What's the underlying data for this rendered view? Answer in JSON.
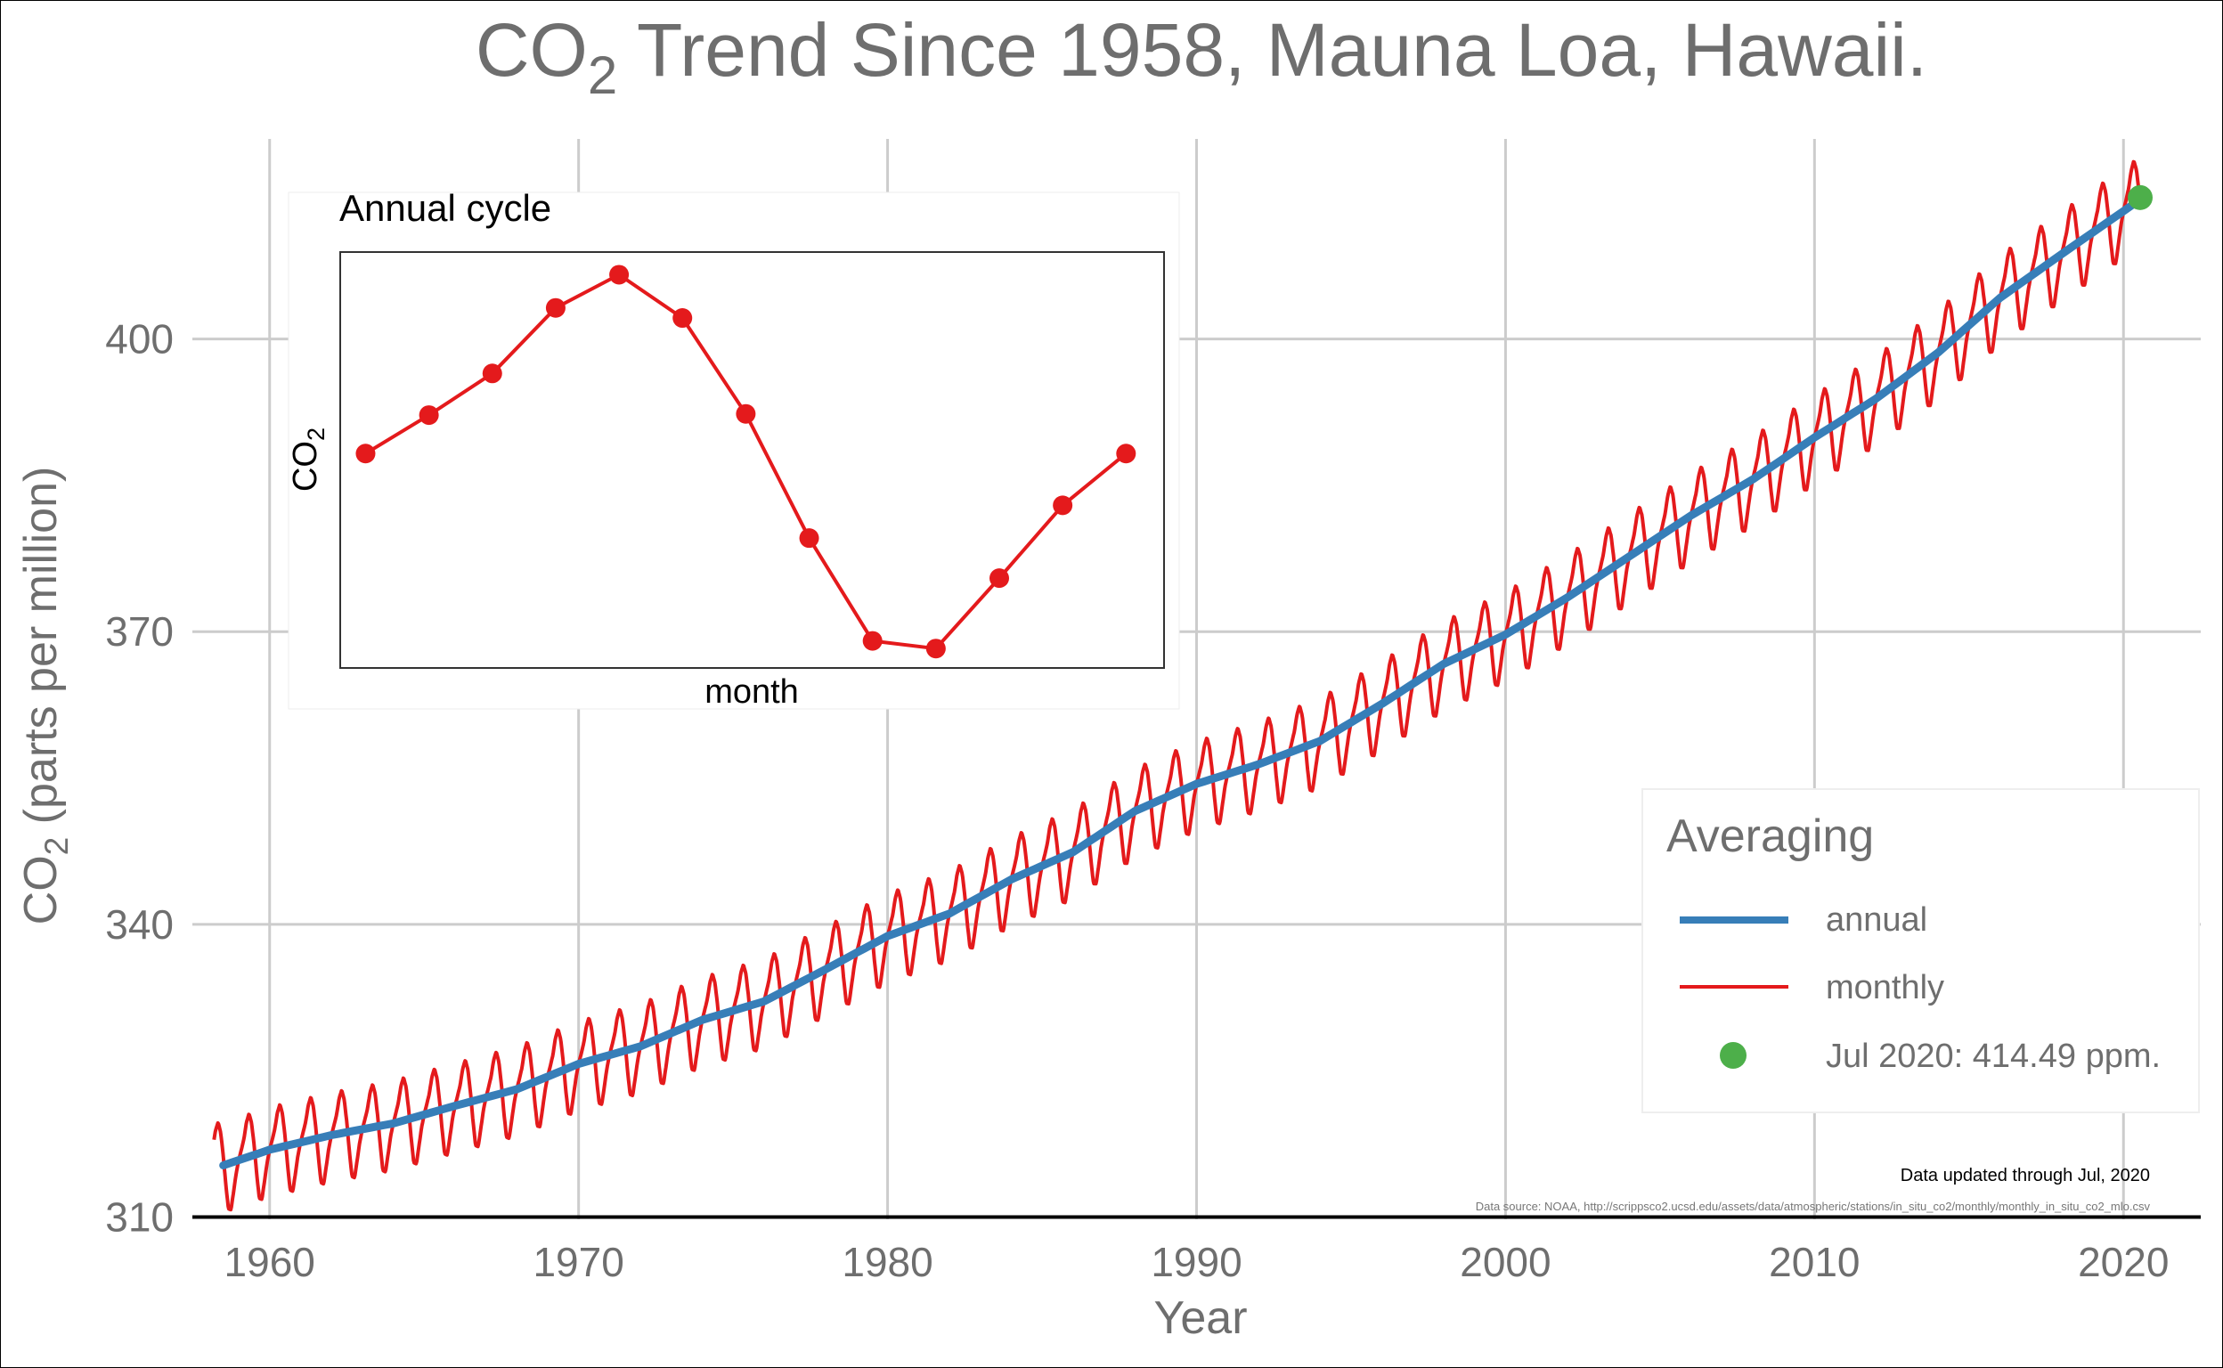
{
  "chart_data": [
    {
      "type": "line",
      "title_main": "CO",
      "title_sub": "2",
      "title_rest": " Trend Since 1958, Mauna Loa, Hawaii.",
      "xlabel": "Year",
      "ylabel_main": "CO",
      "ylabel_sub": "2",
      "ylabel_rest": " (parts per million)",
      "xlim": [
        1957.5,
        2022.5
      ],
      "ylim": [
        309.5,
        420.5
      ],
      "x_ticks": [
        1960,
        1970,
        1980,
        1990,
        2000,
        2010,
        2020
      ],
      "x_tick_labels": [
        "1960",
        "1970",
        "1980",
        "1990",
        "2000",
        "2010",
        "2020"
      ],
      "y_ticks": [
        310,
        340,
        370,
        400
      ],
      "y_tick_labels": [
        "310",
        "340",
        "370",
        "400"
      ],
      "grid": true,
      "series": [
        {
          "name": "annual",
          "color": "#377EB8",
          "x": [
            1958.5,
            1960,
            1962,
            1964,
            1966,
            1968,
            1970,
            1972,
            1974,
            1976,
            1978,
            1980,
            1982,
            1984,
            1986,
            1988,
            1990,
            1992,
            1994,
            1996,
            1998,
            2000,
            2002,
            2004,
            2006,
            2008,
            2010,
            2012,
            2014,
            2016,
            2018,
            2020.5
          ],
          "values": [
            315.3,
            316.9,
            318.4,
            319.6,
            321.4,
            323.1,
            325.7,
            327.5,
            330.2,
            332.1,
            335.4,
            338.8,
            341.1,
            344.6,
            347.4,
            351.6,
            354.4,
            356.4,
            358.8,
            362.6,
            366.7,
            369.7,
            373.5,
            377.7,
            381.9,
            385.6,
            389.9,
            393.9,
            398.6,
            404.2,
            408.7,
            414.2
          ]
        },
        {
          "name": "monthly",
          "color": "#E41A1C",
          "x": [
            1958.5,
            1960,
            1962,
            1964,
            1966,
            1968,
            1970,
            1972,
            1974,
            1976,
            1978,
            1980,
            1982,
            1984,
            1986,
            1988,
            1990,
            1992,
            1994,
            1996,
            1998,
            2000,
            2002,
            2004,
            2006,
            2008,
            2010,
            2012,
            2014,
            2016,
            2018,
            2020.5
          ],
          "values": [
            315.3,
            316.9,
            318.4,
            319.6,
            321.4,
            323.1,
            325.7,
            327.5,
            330.2,
            332.1,
            335.4,
            338.8,
            341.1,
            344.6,
            347.4,
            351.6,
            354.4,
            356.4,
            358.8,
            362.6,
            366.7,
            369.7,
            373.5,
            377.7,
            381.9,
            385.6,
            389.9,
            393.9,
            398.6,
            404.2,
            408.7,
            414.2
          ],
          "seasonal_amplitude_ppm": [
            3.3,
            3.3,
            3.4,
            3.5,
            3.6,
            3.7,
            3.8,
            3.9,
            4.0,
            4.1,
            4.2,
            4.3
          ]
        }
      ],
      "highlight_point": {
        "label": "Jul 2020: 414.49 ppm.",
        "x": 2020.54,
        "y": 414.49,
        "color": "#4DAF4A"
      },
      "legend": {
        "title": "Averaging",
        "position": "bottom-right",
        "entries": [
          {
            "label": "annual",
            "color": "#377EB8",
            "kind": "line"
          },
          {
            "label": "monthly",
            "color": "#E41A1C",
            "kind": "line"
          },
          {
            "label": "Jul 2020: 414.49 ppm.",
            "color": "#4DAF4A",
            "kind": "point"
          }
        ]
      },
      "annotations": {
        "updated": "Data updated through Jul, 2020",
        "source": "Data source: NOAA, http://scrippsco2.ucsd.edu/assets/data/atmospheric/stations/in_situ_co2/monthly/monthly_in_situ_co2_mlo.csv"
      }
    },
    {
      "type": "line",
      "title": "Annual cycle",
      "xlabel": "month",
      "ylabel_main": "CO",
      "ylabel_sub": "2",
      "x": [
        1,
        2,
        3,
        4,
        5,
        6,
        7,
        8,
        9,
        10,
        11,
        12,
        13
      ],
      "values": [
        0.0,
        0.95,
        1.98,
        3.6,
        4.42,
        3.35,
        0.98,
        -2.09,
        -4.63,
        -4.82,
        -3.08,
        -1.28,
        0.0
      ],
      "xlim": [
        0.6,
        13.6
      ],
      "ylim": [
        -5.3,
        4.98
      ],
      "color": "#E41A1C",
      "axis_ticks_shown": false
    }
  ],
  "colors": {
    "text_grey": "#6E6E6E",
    "grid": "#CCCCCC",
    "axis": "#000000"
  }
}
